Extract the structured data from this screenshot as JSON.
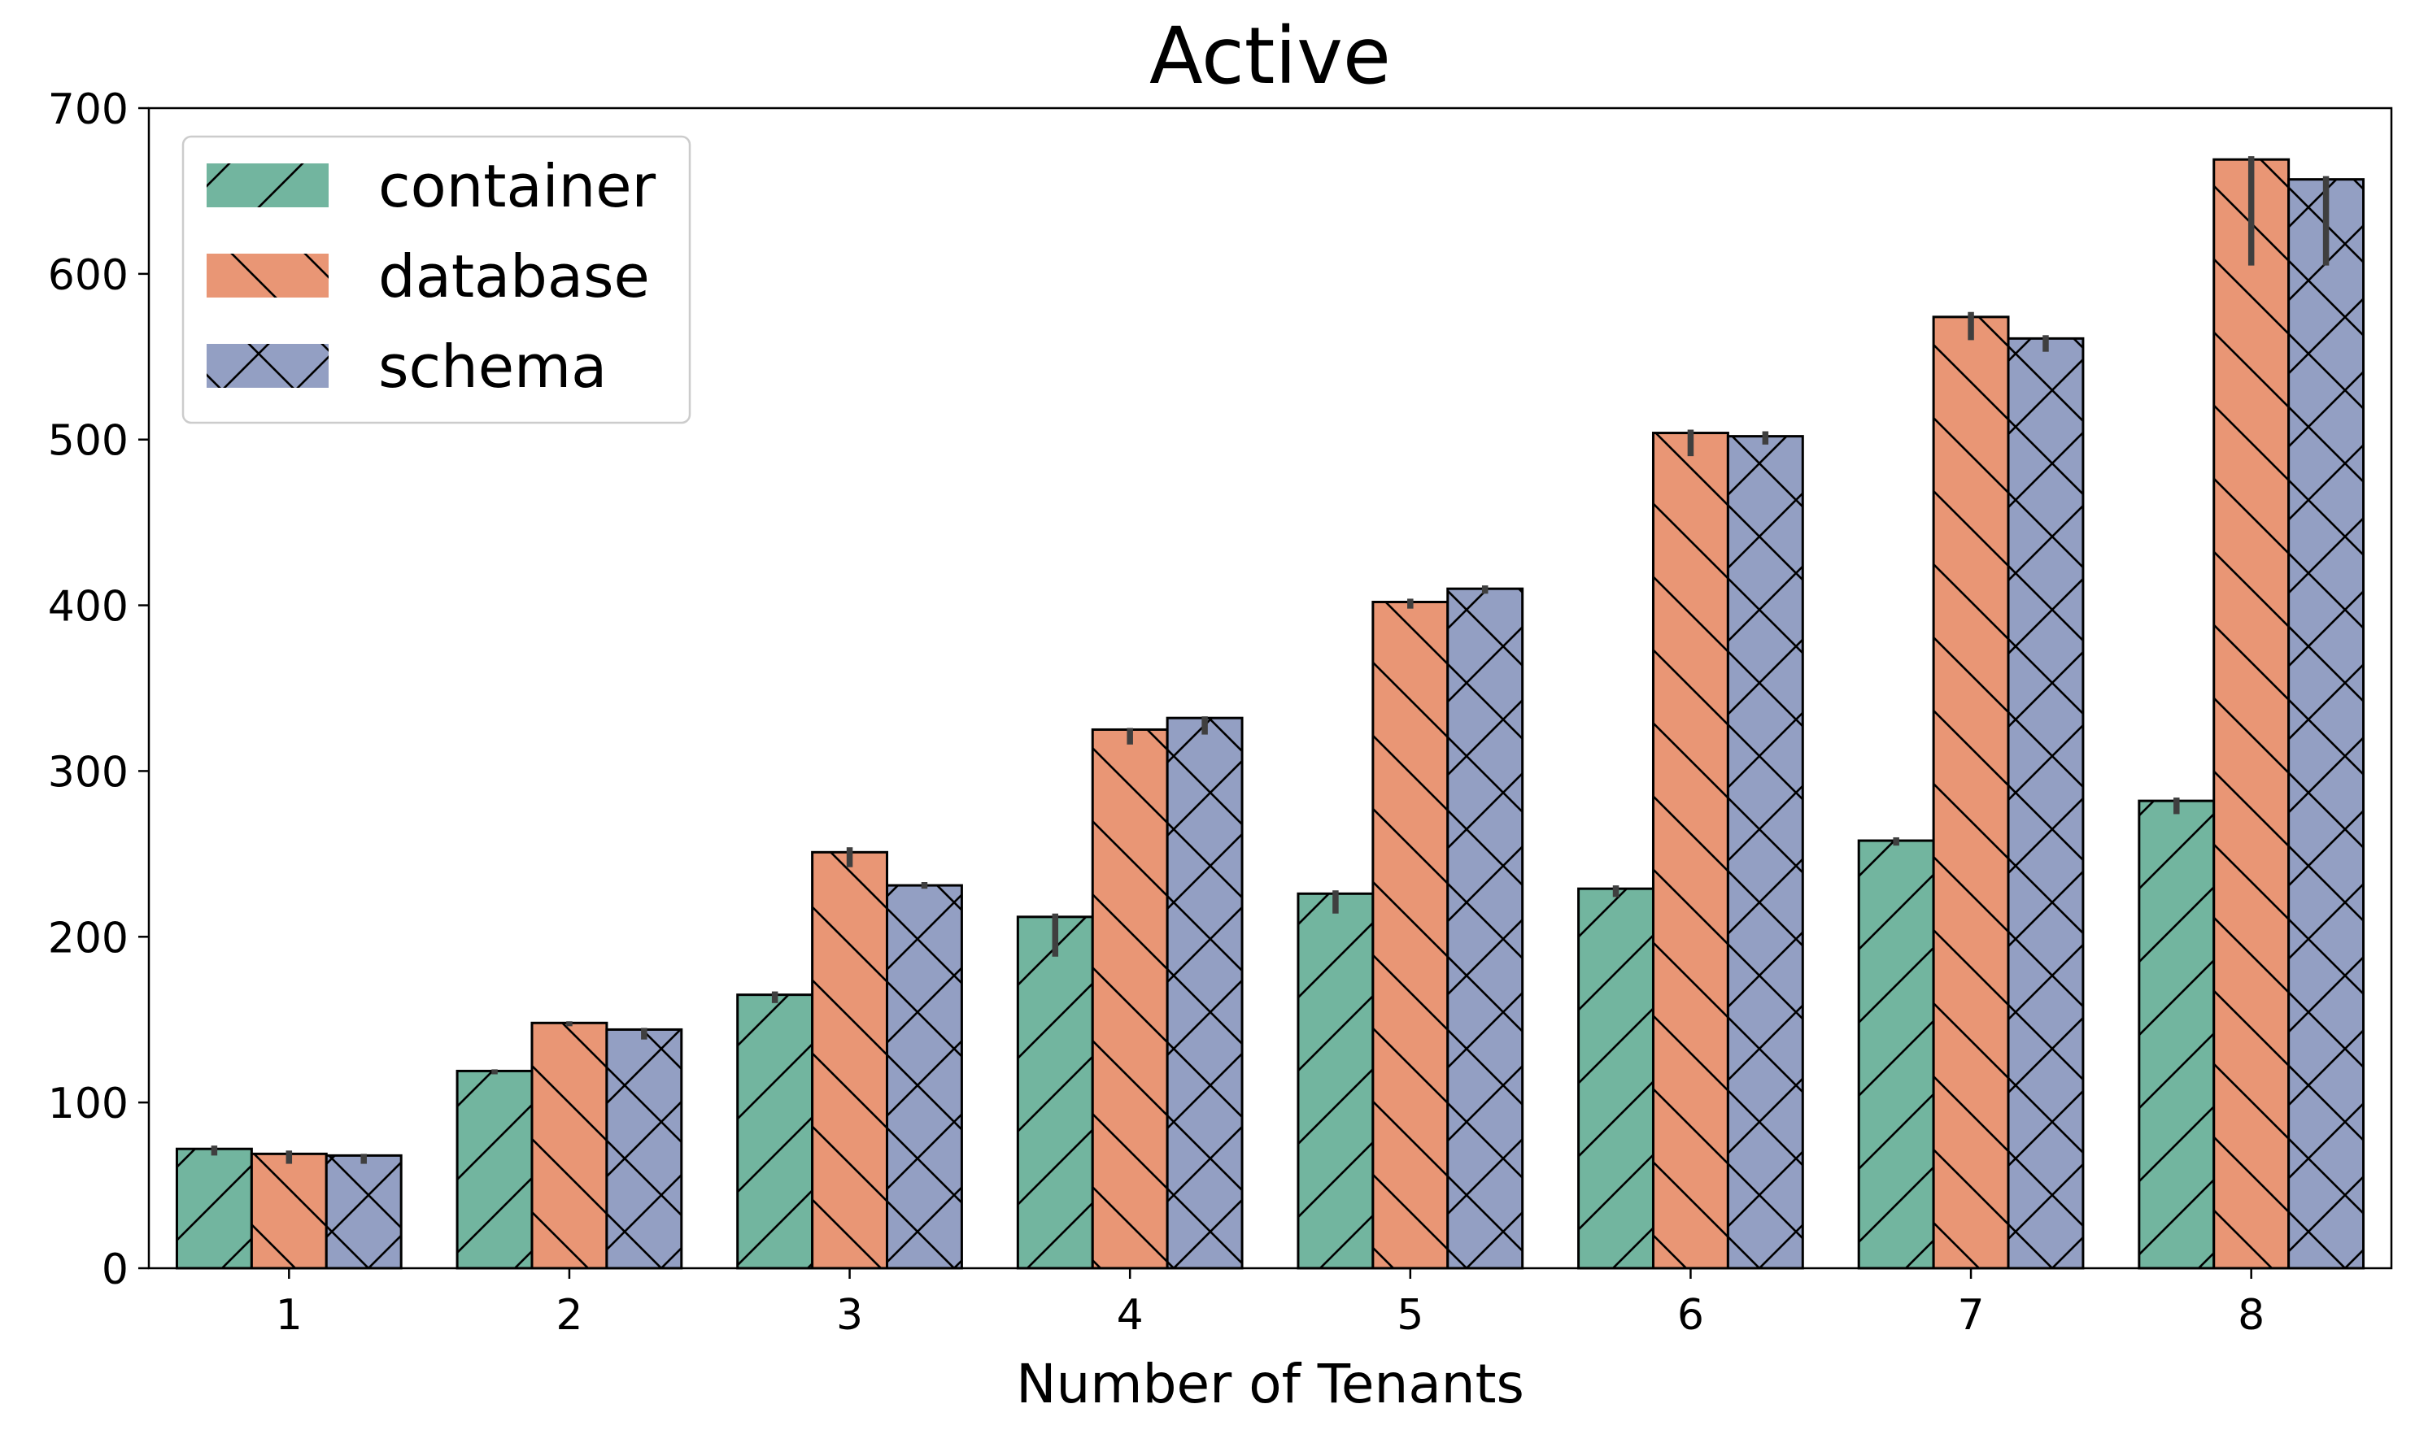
{
  "chart_data": {
    "type": "bar",
    "title": "Active",
    "xlabel": "Number of Tenants",
    "ylabel": "",
    "categories": [
      "1",
      "2",
      "3",
      "4",
      "5",
      "6",
      "7",
      "8"
    ],
    "ylim": [
      0,
      700
    ],
    "yticks": [
      0,
      100,
      200,
      300,
      400,
      500,
      600,
      700
    ],
    "grid": false,
    "legend_position": "top-left",
    "series": [
      {
        "name": "container",
        "color": "#72b59f",
        "hatch": "/",
        "values": [
          72,
          119,
          165,
          212,
          226,
          229,
          258,
          282
        ],
        "error_low": [
          68,
          117,
          160,
          188,
          214,
          224,
          255,
          274
        ],
        "error_high": [
          74,
          120,
          167,
          214,
          228,
          231,
          260,
          284
        ]
      },
      {
        "name": "database",
        "color": "#e99675",
        "hatch": "\\",
        "values": [
          69,
          148,
          251,
          325,
          402,
          504,
          574,
          669
        ],
        "error_low": [
          63,
          146,
          242,
          316,
          398,
          490,
          560,
          605
        ],
        "error_high": [
          71,
          149,
          254,
          326,
          404,
          506,
          577,
          671
        ]
      },
      {
        "name": "schema",
        "color": "#939fc3",
        "hatch": "x",
        "values": [
          68,
          144,
          231,
          332,
          410,
          502,
          561,
          657
        ],
        "error_low": [
          63,
          138,
          229,
          322,
          407,
          497,
          553,
          605
        ],
        "error_high": [
          69,
          145,
          233,
          333,
          412,
          505,
          563,
          659
        ]
      }
    ]
  }
}
